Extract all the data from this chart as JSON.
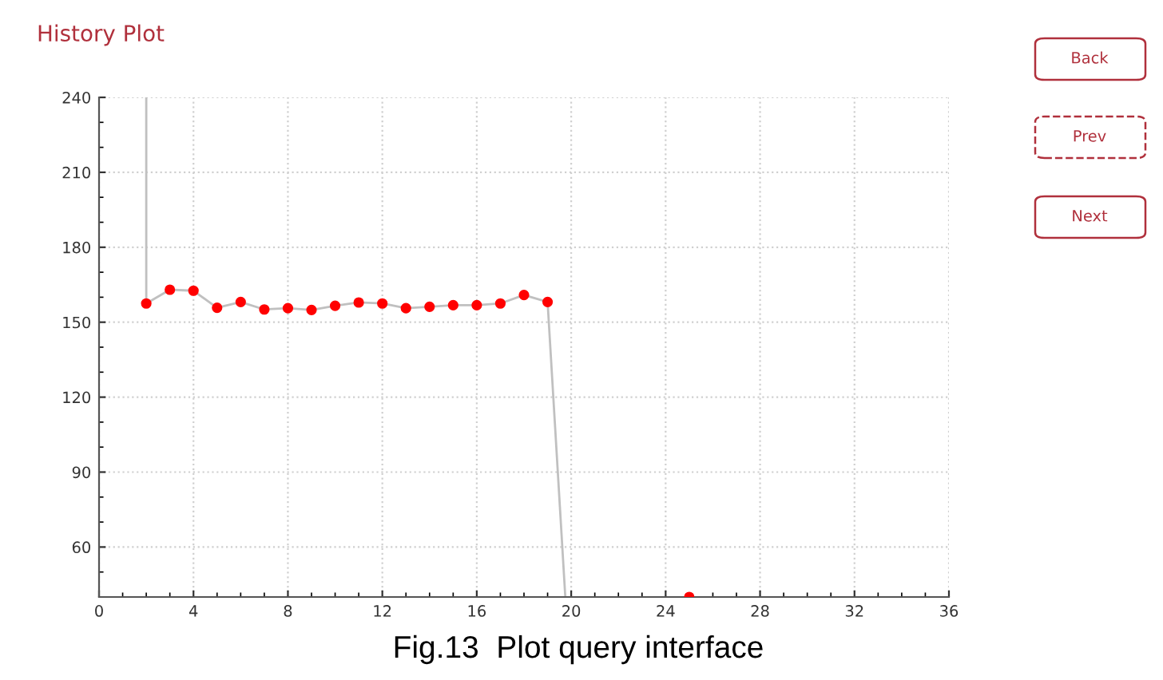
{
  "chart_data": {
    "type": "line",
    "title": "History Plot",
    "series": [
      {
        "color": "#c0c0c0",
        "marker": "none",
        "x": [
          2,
          2,
          3,
          4,
          5,
          6,
          7,
          8,
          9,
          10,
          11,
          12,
          13,
          14,
          15,
          16,
          17,
          18,
          19,
          19.75
        ],
        "values": [
          240,
          157.5,
          163,
          162.6,
          155.8,
          158.1,
          155.1,
          155.6,
          154.9,
          156.6,
          157.9,
          157.5,
          155.6,
          156.2,
          156.8,
          156.8,
          157.5,
          160.9,
          158.1,
          40
        ]
      },
      {
        "type": "scatter",
        "color": "#ff0000",
        "marker": "circle",
        "x": [
          2,
          3,
          4,
          5,
          6,
          7,
          8,
          9,
          10,
          11,
          12,
          13,
          14,
          15,
          16,
          17,
          18,
          19,
          25
        ],
        "values": [
          157.5,
          163,
          162.6,
          155.8,
          158.1,
          155.1,
          155.6,
          154.9,
          156.6,
          157.9,
          157.5,
          155.6,
          156.2,
          156.8,
          156.8,
          157.5,
          160.9,
          158.1,
          40
        ]
      }
    ],
    "xlim": [
      0,
      36
    ],
    "xticks": [
      0,
      4,
      8,
      12,
      16,
      20,
      24,
      28,
      32,
      36
    ],
    "ylim": [
      40,
      240
    ],
    "yticks": [
      60,
      90,
      120,
      150,
      180,
      210,
      240
    ],
    "grid": true,
    "annotations": [
      "Back",
      "Prev",
      "Next",
      "Fig.13  Plot query interface"
    ]
  }
}
